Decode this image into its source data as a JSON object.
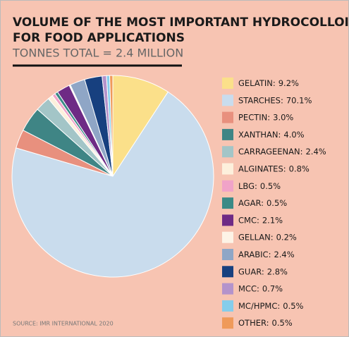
{
  "chart_data": {
    "type": "pie",
    "title": [
      "VOLUME OF THE MOST IMPORTANT HYDROCOLLOIDS",
      "FOR FOOD APPLICATIONS"
    ],
    "subtitle": "TONNES TOTAL = 2.4 MILLION",
    "source": "SOURCE: IMR INTERNATIONAL 2020",
    "categories": [
      "GELATIN:",
      "STARCHES:",
      "PECTIN:",
      "XANTHAN:",
      "CARRAGEENAN:",
      "ALGINATES:",
      "LBG:",
      "AGAR:",
      "CMC:",
      "GELLAN:",
      "ARABIC:",
      "GUAR:",
      "MCC:",
      "MC/HPMC:",
      "OTHER:"
    ],
    "values": [
      9.2,
      70.1,
      3.0,
      4.0,
      2.4,
      0.8,
      0.5,
      0.5,
      2.1,
      0.2,
      2.4,
      2.8,
      0.7,
      0.5,
      0.5
    ],
    "value_labels": [
      "9.2%",
      "70.1%",
      "3.0%",
      "4.0%",
      "2.4%",
      "0.8%",
      "0.5%",
      "0.5%",
      "2.1%",
      "0.2%",
      "2.4%",
      "2.8%",
      "0.7%",
      "0.5%",
      "0.5%"
    ],
    "colors": [
      "#fbe08a",
      "#c9dced",
      "#e8907e",
      "#3f8585",
      "#a3c5c7",
      "#fdf0dc",
      "#f0a3c8",
      "#3a8a86",
      "#6e2a85",
      "#fdf3e6",
      "#8fa6c6",
      "#17407f",
      "#b493cb",
      "#85cdeb",
      "#ef9a5a"
    ]
  }
}
